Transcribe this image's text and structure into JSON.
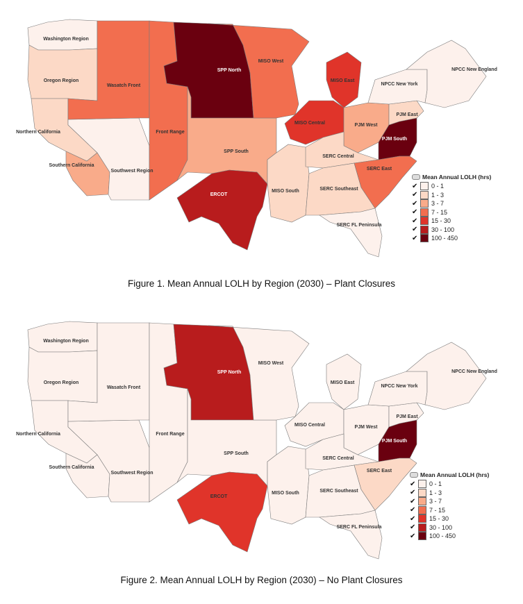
{
  "palette": [
    "#fdf1ec",
    "#fcd9c6",
    "#f9ab8a",
    "#f26e4f",
    "#e0342a",
    "#b81c1d",
    "#6a000f"
  ],
  "legend": {
    "title": "Mean Annual LOLH (hrs)",
    "bins": [
      "0 - 1",
      "1 - 3",
      "3 - 7",
      "7 - 15",
      "15 - 30",
      "30 - 100",
      "100 - 450"
    ]
  },
  "figures": [
    {
      "caption": "Figure 1. Mean Annual LOLH by Region (2030) – Plant Closures",
      "region_bins": {
        "washington": 0,
        "oregon": 1,
        "ncal": 1,
        "scal": 2,
        "southwest": 0,
        "wasatch": 3,
        "frontrange": 3,
        "sppnorth": 6,
        "sppsouth": 2,
        "ercot": 5,
        "misowest": 3,
        "misoeast": 4,
        "misocentral": 4,
        "misosouth": 1,
        "pjmwest": 2,
        "pjmsouth": 6,
        "pjmeast": 1,
        "serccentral": 1,
        "sercsoutheast": 1,
        "sercfl": 0,
        "sercest": 3,
        "npccny": 0,
        "npccne": 0
      }
    },
    {
      "caption": "Figure 2. Mean Annual LOLH by Region (2030) – No Plant Closures",
      "region_bins": {
        "washington": 0,
        "oregon": 0,
        "ncal": 0,
        "scal": 0,
        "southwest": 0,
        "wasatch": 0,
        "frontrange": 0,
        "sppnorth": 5,
        "sppsouth": 0,
        "ercot": 4,
        "misowest": 0,
        "misoeast": 0,
        "misocentral": 0,
        "misosouth": 0,
        "pjmwest": 0,
        "pjmsouth": 6,
        "pjmeast": 0,
        "serccentral": 0,
        "sercsoutheast": 0,
        "sercfl": 0,
        "sercest": 1,
        "npccny": 0,
        "npccne": 0
      }
    }
  ],
  "region_labels": {
    "washington": "Washington Region",
    "oregon": "Oregon Region",
    "ncal": "Northern California",
    "scal": "Southern California",
    "southwest": "Southwest Region",
    "wasatch": "Wasatch Front",
    "frontrange": "Front Range",
    "sppnorth": "SPP North",
    "sppsouth": "SPP South",
    "ercot": "ERCOT",
    "misowest": "MISO West",
    "misoeast": "MISO East",
    "misocentral": "MISO Central",
    "misosouth": "MISO South",
    "pjmwest": "PJM West",
    "pjmsouth": "PJM South",
    "pjmeast": "PJM East",
    "serccentral": "SERC Central",
    "sercsoutheast": "SERC Southeast",
    "sercfl": "SERC FL Peninsula",
    "sercest": "SERC East",
    "npccny": "NPCC New York",
    "npccne": "NPCC New England"
  }
}
